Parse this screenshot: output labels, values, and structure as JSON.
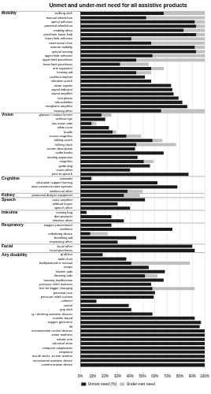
{
  "chart_data": {
    "type": "bar",
    "title": "Unmet and under-met need for all assistive products",
    "orientation": "horizontal",
    "stacked": true,
    "grid": true,
    "legend": "bottom",
    "xlim": [
      0,
      100
    ],
    "xticks": [
      {
        "value": 0,
        "label": "0%"
      },
      {
        "value": 10,
        "label": "10%"
      },
      {
        "value": 20,
        "label": "20%"
      },
      {
        "value": 30,
        "label": "30%"
      },
      {
        "value": 40,
        "label": "40%"
      },
      {
        "value": 50,
        "label": "50%"
      },
      {
        "value": 60,
        "label": "60%"
      },
      {
        "value": 70,
        "label": "70%"
      },
      {
        "value": 80,
        "label": "80%"
      },
      {
        "value": 90,
        "label": "90%"
      },
      {
        "value": 100,
        "label": "100%"
      }
    ],
    "series": [
      {
        "name": "Unmet need (%)",
        "color": "#1a1a1a"
      },
      {
        "name": "Under-met need",
        "color": "#bfbfbf"
      }
    ],
    "groups": [
      {
        "name": "Mobility",
        "categories": [
          "walking stick",
          "manual wheelchair",
          "spinal orthoses",
          "powered wheelchair",
          "mobility other",
          "prosthetic lower limb",
          "lower limb orthoses",
          "commercial chair",
          "exterior mobility",
          "special seating",
          "upper limb orthoses",
          "upper limb prosthesis",
          "lower limb prosthesis",
          "arm supporter",
          "hearing aid",
          "cochlear implant",
          "vibration watch",
          "alarm signals",
          "signal indicator",
          "sound amplifier",
          "text phone",
          "tele-subtitles",
          "telephone amplifier",
          "hearing other"
        ],
        "values": [
          [
            67,
            53,
            92,
            93,
            83,
            93,
            41,
            57,
            92,
            93,
            58,
            45,
            32,
            57,
            45,
            52,
            57,
            73,
            74,
            75,
            79,
            82,
            86,
            65
          ],
          [
            33,
            47,
            8,
            7,
            17,
            7,
            59,
            43,
            8,
            7,
            42,
            55,
            23,
            10,
            12,
            0,
            0,
            0,
            0,
            0,
            0,
            0,
            0,
            35
          ]
        ]
      },
      {
        "name": "Vision",
        "categories": [
          "glasses / contact lenses",
          "artificial eye",
          "low vision aids",
          "white cane",
          "braille",
          "screen magnifier",
          "talking watch",
          "talking clock",
          "screen description",
          "audio books",
          "reading apparatus",
          "magnifier",
          "guide dog",
          "vision other",
          "print to speech"
        ],
        "values": [
          [
            17,
            20,
            9,
            23,
            26,
            37,
            58,
            45,
            44,
            67,
            46,
            51,
            56,
            40,
            87
          ],
          [
            8,
            0,
            4,
            0,
            3,
            12,
            8,
            32,
            0,
            0,
            0,
            8,
            0,
            0,
            0
          ]
        ]
      },
      {
        "name": "Cognitive",
        "categories": [
          "reminder",
          "education support training",
          "augmentative and alternative communication systems",
          "intellectual other"
        ],
        "values": [
          [
            9,
            62,
            78,
            38
          ],
          [
            0,
            0,
            0,
            12
          ]
        ]
      },
      {
        "name": "Kidney",
        "categories": [
          "peritoneal dialysis equipment"
        ],
        "values": [
          [
            35
          ],
          [
            13
          ]
        ]
      },
      {
        "name": "Speech",
        "categories": [
          "voice amplifier",
          "artificial larynx",
          "speech other"
        ],
        "values": [
          [
            52,
            30,
            40
          ],
          [
            0,
            0,
            0
          ]
        ]
      },
      {
        "name": "Intestine",
        "categories": [
          "ostomy bag",
          "diet products",
          "intestine other"
        ],
        "values": [
          [
            5,
            25,
            35
          ],
          [
            0,
            0,
            0
          ]
        ]
      },
      {
        "name": "Respiratory",
        "categories": [
          "oxygen concentrator",
          "ventilator",
          "nebulizing device",
          "breathing aid",
          "respiratory other"
        ],
        "values": [
          [
            25,
            74,
            8,
            45,
            30
          ],
          [
            0,
            0,
            14,
            0,
            0
          ]
        ]
      },
      {
        "name": "Facial",
        "categories": [
          "facial other",
          "facial prosthesis"
        ],
        "values": [
          [
            90,
            92
          ],
          [
            0,
            0
          ]
        ]
      },
      {
        "name": "Any disability",
        "categories": [
          "grab bar",
          "toilet chair",
          "bed/powered or manual",
          "ramps",
          "kitchen aids",
          "dressing aids",
          "housing modification",
          "pressure relief mattress",
          "mat for bigger changing",
          "personal care",
          "pressure relief cushion",
          "catheter",
          "swivel",
          "grip stick",
          "eating / drinking assistive devices",
          "transfer board",
          "oxygen generator",
          "lift",
          "environmental control devices",
          "water mattress",
          "robotic arm",
          "electrical shoe",
          "computer adaptations",
          "respirator",
          "mouth sticks, screen readers",
          "recreational assistive device",
          "communication device"
        ],
        "values": [
          [
            18,
            37,
            41,
            55,
            68,
            52,
            67,
            57,
            58,
            60,
            59,
            13,
            39,
            41,
            58,
            92,
            97,
            96,
            100,
            100,
            100,
            100,
            100,
            100,
            100,
            100,
            100
          ],
          [
            0,
            0,
            47,
            0,
            0,
            10,
            0,
            0,
            34,
            0,
            0,
            0,
            0,
            0,
            0,
            0,
            0,
            0,
            0,
            0,
            0,
            0,
            0,
            0,
            0,
            0,
            0
          ]
        ]
      }
    ]
  }
}
